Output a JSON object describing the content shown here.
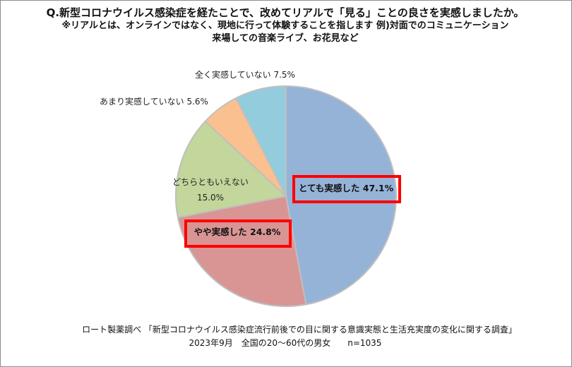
{
  "title": {
    "line1": "Q.新型コロナウイルス感染症を経たことで、改めてリアルで「見る」ことの良さを実感しましたか。",
    "line2": "※リアルとは、オンラインではなく、現地に行って体験することを指します 例)対面でのコミュニケーション",
    "line3": "来場しての音楽ライブ、お花見など"
  },
  "chart_data": {
    "type": "pie",
    "title": "Q.新型コロナウイルス感染症を経たことで、改めてリアルで「見る」ことの良さを実感しましたか。",
    "slices": [
      {
        "label": "とても実感した",
        "value": 47.1,
        "display": "47.1%",
        "color": "#95b3d7",
        "highlight": true
      },
      {
        "label": "やや実感した",
        "value": 24.8,
        "display": "24.8%",
        "color": "#d99594",
        "highlight": true
      },
      {
        "label": "どちらともいえない",
        "value": 15.0,
        "display": "15.0%",
        "color": "#c3d69b",
        "highlight": false
      },
      {
        "label": "あまり実感していない",
        "value": 5.6,
        "display": "5.6%",
        "color": "#fac090",
        "highlight": false
      },
      {
        "label": "全く実感していない",
        "value": 7.5,
        "display": "7.5%",
        "color": "#93cddd",
        "highlight": false
      }
    ],
    "start_angle": "top",
    "direction": "clockwise",
    "highlight_color": "#ff0000"
  },
  "footer": {
    "source": "ロート製薬調べ 「新型コロナウイルス感染症流行前後での目に関する意識実態と生活充実度の変化に関する調査」",
    "meta": "2023年9月　全国の20～60代の男女　　n=1035"
  }
}
